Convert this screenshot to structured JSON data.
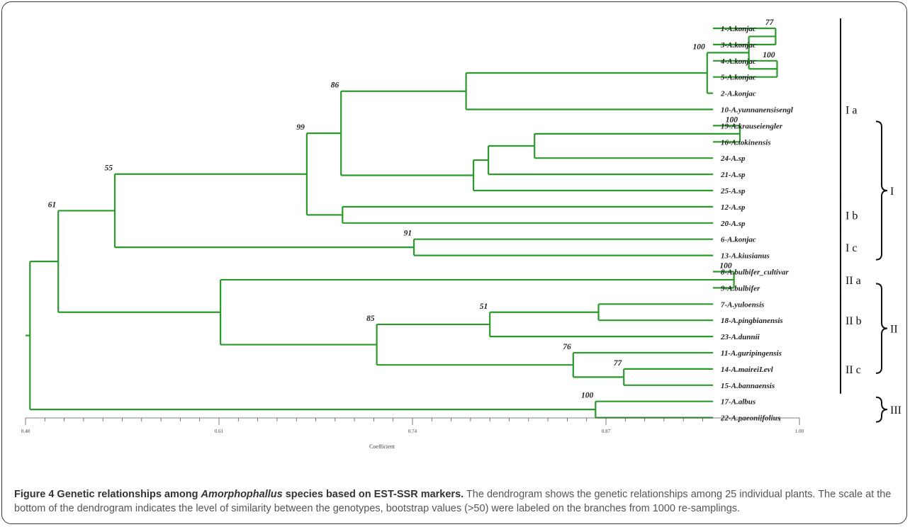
{
  "tree": {
    "leaves": [
      {
        "id": "L1",
        "label": "1-A.konjac"
      },
      {
        "id": "L3",
        "label": "3-A.konjac"
      },
      {
        "id": "L4",
        "label": "4-A.konjac"
      },
      {
        "id": "L5",
        "label": "5-A.konjac"
      },
      {
        "id": "L2",
        "label": "2-A.konjac"
      },
      {
        "id": "L10",
        "label": "10-A.yunnanensisengl"
      },
      {
        "id": "L19",
        "label": "19-A.krauseiengler"
      },
      {
        "id": "L16",
        "label": "16-A.tokinensis"
      },
      {
        "id": "L24",
        "label": "24-A.sp"
      },
      {
        "id": "L21",
        "label": "21-A.sp"
      },
      {
        "id": "L25",
        "label": "25-A.sp"
      },
      {
        "id": "L12",
        "label": "12-A.sp"
      },
      {
        "id": "L20",
        "label": "20-A.sp"
      },
      {
        "id": "L6",
        "label": "6-A.konjac"
      },
      {
        "id": "L13",
        "label": "13-A.kiusianus"
      },
      {
        "id": "L8",
        "label": "8-A.bulbifer_cultivar"
      },
      {
        "id": "L9",
        "label": "9-A.bulbifer"
      },
      {
        "id": "L7",
        "label": "7-A.yuloensis"
      },
      {
        "id": "L18",
        "label": "18-A.pingbianensis"
      },
      {
        "id": "L23",
        "label": "23-A.dunnii"
      },
      {
        "id": "L11",
        "label": "11-A.guripingensis"
      },
      {
        "id": "L14",
        "label": "14-A.maireiLevl"
      },
      {
        "id": "L15",
        "label": "15-A.bannaensis"
      },
      {
        "id": "L17",
        "label": "17-A.albus"
      },
      {
        "id": "L22",
        "label": "22-A.paeoniifolius"
      }
    ],
    "nodes": [
      {
        "id": "n1",
        "sim": 0.984,
        "children": [
          "L1",
          "L3"
        ],
        "bootstrap": "77"
      },
      {
        "id": "n2",
        "sim": 0.985,
        "children": [
          "L4",
          "L5"
        ],
        "bootstrap": "100"
      },
      {
        "id": "n3",
        "sim": 0.966,
        "children": [
          "n1",
          "n2"
        ],
        "bootstrap": ""
      },
      {
        "id": "n4",
        "sim": 0.938,
        "children": [
          "n3",
          "L2"
        ],
        "bootstrap": "100"
      },
      {
        "id": "n5",
        "sim": 0.776,
        "children": [
          "n4",
          "L10"
        ],
        "bootstrap": ""
      },
      {
        "id": "n6",
        "sim": 0.96,
        "children": [
          "L19",
          "L16"
        ],
        "bootstrap": "100"
      },
      {
        "id": "n7",
        "sim": 0.822,
        "children": [
          "n6",
          "L24"
        ],
        "bootstrap": ""
      },
      {
        "id": "n8",
        "sim": 0.791,
        "children": [
          "n7",
          "L21"
        ],
        "bootstrap": ""
      },
      {
        "id": "n9",
        "sim": 0.781,
        "children": [
          "n8",
          "L25"
        ],
        "bootstrap": ""
      },
      {
        "id": "n10",
        "sim": 0.692,
        "children": [
          "n5",
          "n9"
        ],
        "bootstrap": "86"
      },
      {
        "id": "n11",
        "sim": 0.693,
        "children": [
          "L12",
          "L20"
        ],
        "bootstrap": ""
      },
      {
        "id": "n12",
        "sim": 0.669,
        "children": [
          "n10",
          "n11"
        ],
        "bootstrap": "99"
      },
      {
        "id": "n13",
        "sim": 0.741,
        "children": [
          "L6",
          "L13"
        ],
        "bootstrap": "91"
      },
      {
        "id": "n14",
        "sim": 0.54,
        "children": [
          "n12",
          "n13"
        ],
        "bootstrap": "55"
      },
      {
        "id": "n15",
        "sim": 0.956,
        "children": [
          "L8",
          "L9"
        ],
        "bootstrap": "100"
      },
      {
        "id": "n16",
        "sim": 0.865,
        "children": [
          "L7",
          "L18"
        ],
        "bootstrap": ""
      },
      {
        "id": "n17",
        "sim": 0.792,
        "children": [
          "n16",
          "L23"
        ],
        "bootstrap": "51"
      },
      {
        "id": "n18",
        "sim": 0.882,
        "children": [
          "L14",
          "L15"
        ],
        "bootstrap": "77"
      },
      {
        "id": "n19",
        "sim": 0.848,
        "children": [
          "L11",
          "n18"
        ],
        "bootstrap": "76"
      },
      {
        "id": "n20",
        "sim": 0.716,
        "children": [
          "n17",
          "n19"
        ],
        "bootstrap": "85"
      },
      {
        "id": "n21",
        "sim": 0.611,
        "children": [
          "n15",
          "n20"
        ],
        "bootstrap": ""
      },
      {
        "id": "n22",
        "sim": 0.502,
        "children": [
          "n14",
          "n21"
        ],
        "bootstrap": "61"
      },
      {
        "id": "n23",
        "sim": 0.863,
        "children": [
          "L17",
          "L22"
        ],
        "bootstrap": "100"
      },
      {
        "id": "n24",
        "sim": 0.483,
        "children": [
          "n22",
          "n23"
        ],
        "bootstrap": ""
      }
    ],
    "root": "n24",
    "branch_color": "#2a9a2a"
  },
  "axis": {
    "min": 0.48,
    "max": 1.0,
    "ticks": [
      "0.48",
      "0.61",
      "0.74",
      "0.87",
      "1.00"
    ],
    "label": "Coefficient"
  },
  "groups": {
    "subgroups": [
      {
        "label": "I a",
        "from": "L1",
        "to": "L25"
      },
      {
        "label": "I b",
        "from": "L12",
        "to": "L20"
      },
      {
        "label": "I c",
        "from": "L6",
        "to": "L13"
      },
      {
        "label": "II a",
        "from": "L8",
        "to": "L9"
      },
      {
        "label": "II b",
        "from": "L7",
        "to": "L23"
      },
      {
        "label": "II c",
        "from": "L11",
        "to": "L15"
      }
    ],
    "major": [
      {
        "label": "I",
        "from": "L19",
        "to": "L13"
      },
      {
        "label": "II",
        "from": "L9",
        "to": "L14"
      },
      {
        "label": "III",
        "from": "L17",
        "to": "L22"
      }
    ]
  },
  "caption": {
    "title_a": "Figure 4 Genetic relationships among ",
    "title_italic": "Amorphophallus",
    "title_b": " species based on EST-SSR markers.",
    "body": " The dendrogram shows the genetic relationships among 25 individual plants. The scale at the bottom of the dendrogram indicates the level of similarity between the genotypes, bootstrap values (>50) were labeled on the branches from 1000 re-samplings."
  }
}
